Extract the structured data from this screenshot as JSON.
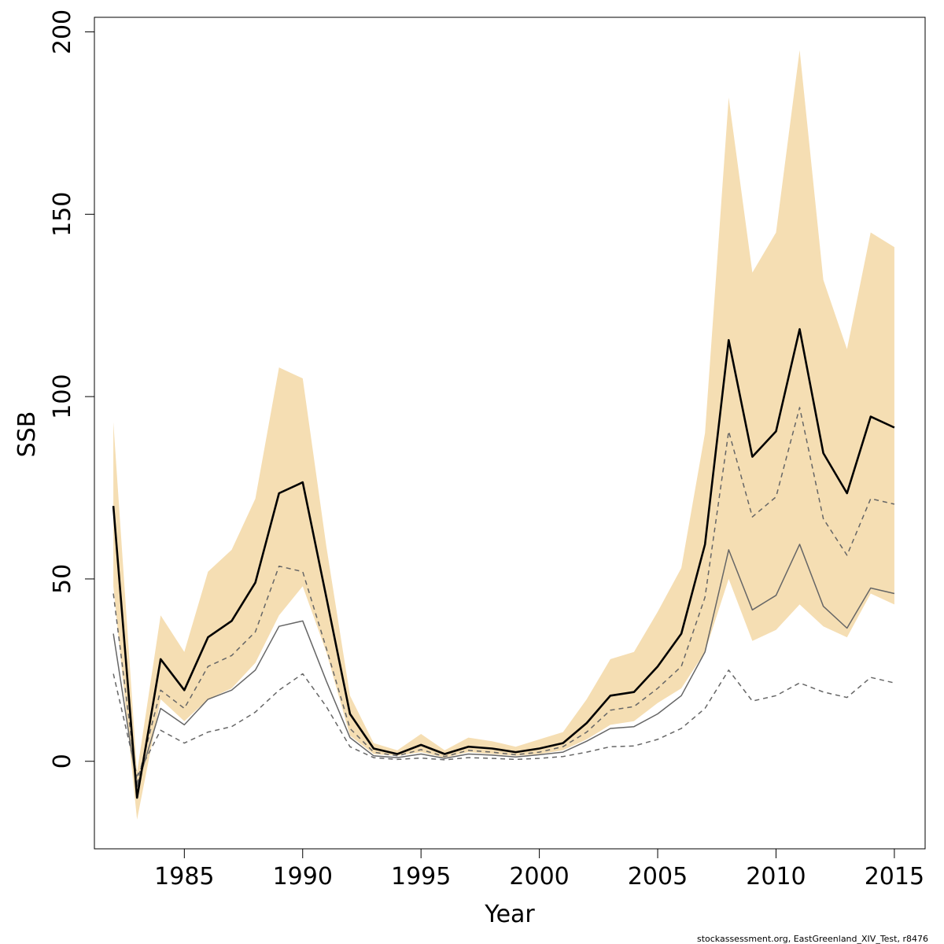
{
  "chart_data": {
    "type": "area",
    "xlabel": "Year",
    "ylabel": "SSB",
    "xlim": [
      1981.2,
      2016.3
    ],
    "ylim": [
      -24,
      204
    ],
    "x_ticks": [
      1985,
      1990,
      1995,
      2000,
      2005,
      2010,
      2015
    ],
    "y_ticks": [
      0,
      50,
      100,
      150,
      200
    ],
    "grid": false,
    "legend": "none",
    "colors": {
      "band": "#F5DEB3",
      "main": "#000000",
      "secondary": "#666666"
    },
    "x": [
      1982,
      1983,
      1984,
      1985,
      1986,
      1987,
      1988,
      1989,
      1990,
      1991,
      1992,
      1993,
      1994,
      1995,
      1996,
      1997,
      1998,
      1999,
      2000,
      2001,
      2002,
      2003,
      2004,
      2005,
      2006,
      2007,
      2008,
      2009,
      2010,
      2011,
      2012,
      2013,
      2014,
      2015
    ],
    "band": {
      "upper": [
        93,
        -3,
        40,
        30,
        52,
        58,
        72,
        108,
        105,
        59,
        18,
        5,
        3,
        7.5,
        3,
        6.5,
        5.5,
        4,
        6,
        8,
        17,
        28,
        30,
        41,
        53,
        90,
        182,
        134,
        145,
        195,
        132,
        113,
        145,
        141
      ],
      "lower": [
        48,
        -16,
        17,
        11,
        17,
        20,
        27,
        40,
        48,
        30,
        7,
        2,
        1.5,
        2.5,
        1,
        2.5,
        2,
        1.5,
        2,
        3,
        6,
        10,
        11,
        16,
        20,
        30,
        50,
        33,
        36,
        43,
        37,
        34,
        46,
        43
      ]
    },
    "series": [
      {
        "style": "solid-thick",
        "values": [
          70,
          -10,
          28,
          19.5,
          34,
          38.5,
          49,
          73.5,
          76.5,
          45,
          13,
          3.5,
          2,
          4.5,
          2,
          4,
          3.5,
          2.5,
          3.5,
          5,
          10.5,
          18,
          19,
          26,
          35,
          59.5,
          115.5,
          83.5,
          90.5,
          118.5,
          84.5,
          73.5,
          94.5,
          91.5
        ]
      },
      {
        "style": "dashed",
        "values": [
          46,
          -6,
          19.5,
          14.5,
          26,
          29,
          35.5,
          53.5,
          52,
          31,
          9,
          2.5,
          1.5,
          3.2,
          1.3,
          3,
          2.5,
          1.8,
          2.5,
          4,
          8,
          14,
          15,
          20,
          26,
          45,
          90.5,
          67,
          72.5,
          97,
          66.5,
          56.5,
          72,
          70.5
        ]
      },
      {
        "style": "solid-thin",
        "values": [
          35,
          -7,
          14.5,
          10,
          17,
          19.5,
          25,
          37,
          38.5,
          22,
          6.5,
          1.5,
          1,
          2,
          0.8,
          2,
          1.7,
          1.2,
          1.8,
          2.5,
          5.5,
          9,
          9.5,
          13,
          18,
          30,
          58,
          41.5,
          45.5,
          59.5,
          42.5,
          36.5,
          47.5,
          46
        ]
      },
      {
        "style": "dashed",
        "values": [
          24,
          -4,
          8.5,
          5,
          8,
          9.5,
          13.5,
          19.5,
          24,
          15,
          4,
          1,
          0.5,
          0.9,
          0.4,
          1,
          0.8,
          0.5,
          0.8,
          1.3,
          2.5,
          4,
          4.2,
          6,
          9,
          14.5,
          25,
          16.5,
          18,
          21.5,
          19,
          17.5,
          23,
          21.5
        ]
      }
    ]
  },
  "footnote": "stockassessment.org, EastGreenland_XIV_Test, r8476"
}
